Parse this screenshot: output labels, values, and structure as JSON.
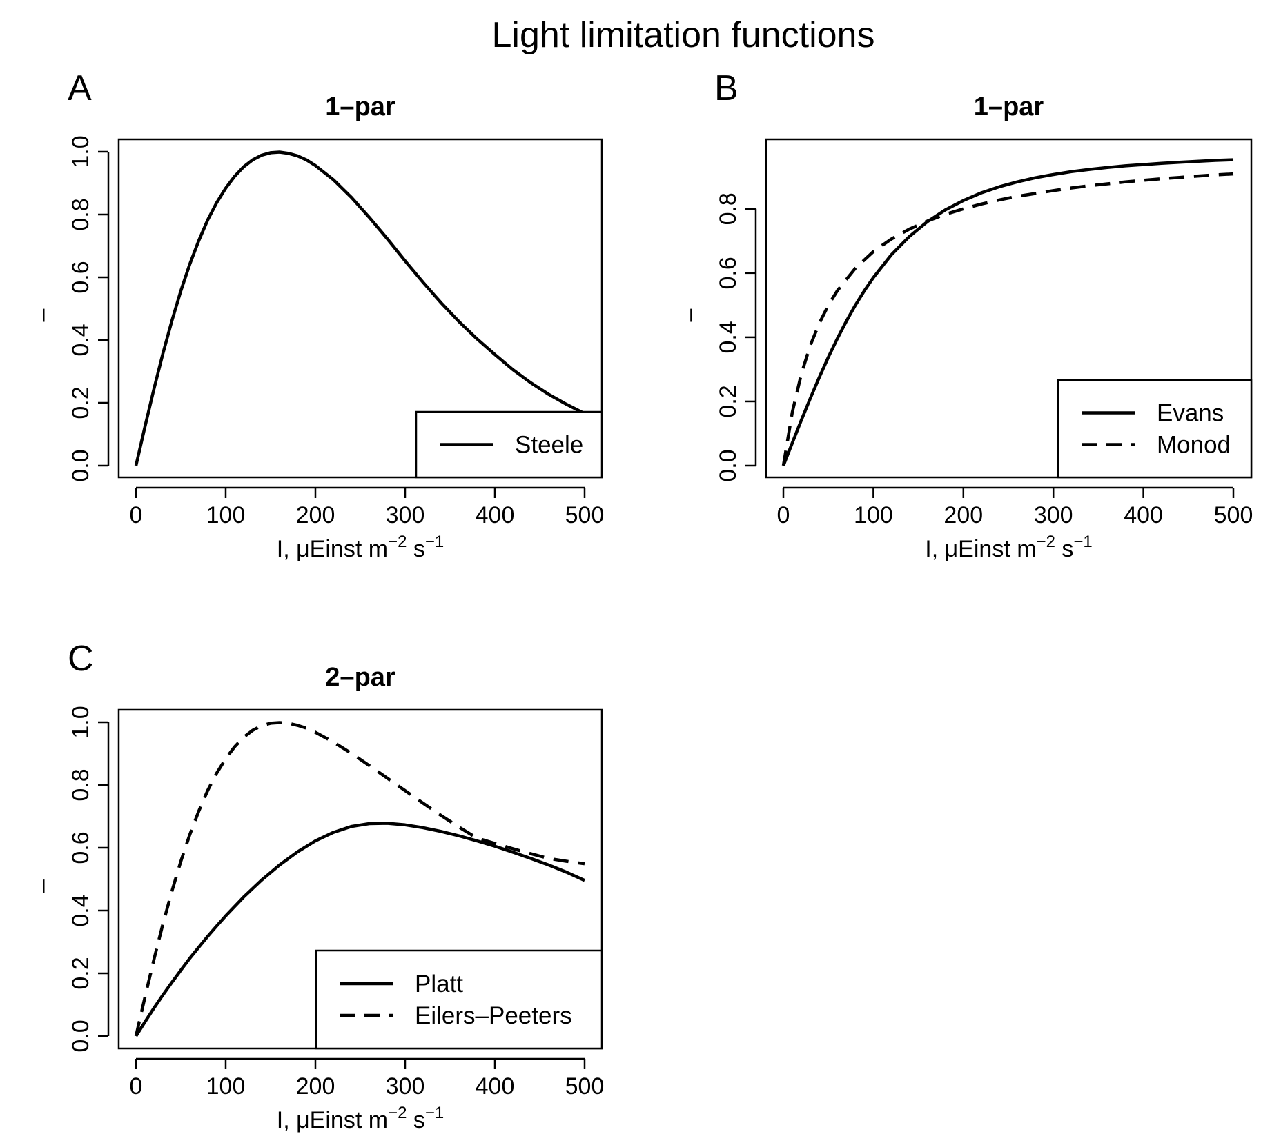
{
  "figure": {
    "title": "Light limitation functions"
  },
  "chart_data": [
    {
      "type": "line",
      "panel": "A",
      "title": "1–par",
      "xlabel": {
        "base": "I, μEinst m",
        "sup1": "−2",
        "mid": " s",
        "sup2": "−1"
      },
      "ylabel": "–",
      "xlim": [
        0,
        500
      ],
      "ylim": [
        0,
        1.0
      ],
      "xticks": [
        0,
        100,
        200,
        300,
        400,
        500
      ],
      "xtick_labels": [
        "0",
        "100",
        "200",
        "300",
        "400",
        "500"
      ],
      "yticks": [
        0,
        0.2,
        0.4,
        0.6,
        0.8,
        1.0
      ],
      "ytick_labels": [
        "0.0",
        "0.2",
        "0.4",
        "0.6",
        "0.8",
        "1.0"
      ],
      "legend_position": "bottom-right",
      "series": [
        {
          "name": "Steele",
          "line_style": "solid",
          "x": [
            0,
            10,
            20,
            30,
            40,
            50,
            60,
            70,
            80,
            90,
            100,
            110,
            120,
            130,
            140,
            150,
            160,
            170,
            180,
            190,
            200,
            220,
            240,
            260,
            280,
            300,
            320,
            340,
            360,
            380,
            400,
            420,
            440,
            460,
            480,
            500
          ],
          "y": [
            0,
            0.124,
            0.244,
            0.357,
            0.461,
            0.557,
            0.642,
            0.717,
            0.783,
            0.838,
            0.884,
            0.922,
            0.952,
            0.974,
            0.989,
            0.997,
            0.999,
            0.995,
            0.987,
            0.974,
            0.956,
            0.911,
            0.855,
            0.791,
            0.723,
            0.652,
            0.584,
            0.519,
            0.459,
            0.404,
            0.354,
            0.306,
            0.264,
            0.227,
            0.195,
            0.166
          ]
        }
      ]
    },
    {
      "type": "line",
      "panel": "B",
      "title": "1–par",
      "xlabel": {
        "base": "I, μEinst m",
        "sup1": "−2",
        "mid": " s",
        "sup2": "−1"
      },
      "ylabel": "–",
      "xlim": [
        0,
        500
      ],
      "ylim": [
        0,
        0.95
      ],
      "xticks": [
        0,
        100,
        200,
        300,
        400,
        500
      ],
      "xtick_labels": [
        "0",
        "100",
        "200",
        "300",
        "400",
        "500"
      ],
      "yticks": [
        0,
        0.2,
        0.4,
        0.6,
        0.8
      ],
      "ytick_labels": [
        "0.0",
        "0.2",
        "0.4",
        "0.6",
        "0.8"
      ],
      "legend_position": "bottom-right",
      "series": [
        {
          "name": "Evans",
          "line_style": "solid",
          "x": [
            0,
            10,
            20,
            30,
            40,
            50,
            60,
            70,
            80,
            90,
            100,
            120,
            140,
            160,
            180,
            200,
            220,
            240,
            260,
            280,
            300,
            320,
            340,
            360,
            380,
            400,
            420,
            440,
            460,
            480,
            500
          ],
          "y": [
            0,
            0.071,
            0.142,
            0.21,
            0.276,
            0.338,
            0.396,
            0.45,
            0.5,
            0.545,
            0.586,
            0.657,
            0.714,
            0.76,
            0.797,
            0.826,
            0.85,
            0.869,
            0.884,
            0.897,
            0.907,
            0.916,
            0.923,
            0.929,
            0.934,
            0.938,
            0.942,
            0.945,
            0.948,
            0.951,
            0.953
          ]
        },
        {
          "name": "Monod",
          "line_style": "dashed",
          "x": [
            0,
            10,
            20,
            30,
            40,
            50,
            60,
            80,
            100,
            120,
            140,
            160,
            180,
            200,
            220,
            240,
            260,
            280,
            300,
            320,
            340,
            360,
            380,
            400,
            420,
            440,
            460,
            480,
            500
          ],
          "y": [
            0,
            0.167,
            0.286,
            0.375,
            0.444,
            0.5,
            0.545,
            0.615,
            0.667,
            0.706,
            0.737,
            0.762,
            0.783,
            0.8,
            0.815,
            0.828,
            0.839,
            0.848,
            0.857,
            0.865,
            0.872,
            0.878,
            0.884,
            0.889,
            0.894,
            0.898,
            0.902,
            0.906,
            0.909
          ]
        }
      ]
    },
    {
      "type": "line",
      "panel": "C",
      "title": "2–par",
      "xlabel": {
        "base": "I, μEinst m",
        "sup1": "−2",
        "mid": " s",
        "sup2": "−1"
      },
      "ylabel": "–",
      "xlim": [
        0,
        500
      ],
      "ylim": [
        0,
        1.0
      ],
      "xticks": [
        0,
        100,
        200,
        300,
        400,
        500
      ],
      "xtick_labels": [
        "0",
        "100",
        "200",
        "300",
        "400",
        "500"
      ],
      "yticks": [
        0,
        0.2,
        0.4,
        0.6,
        0.8,
        1.0
      ],
      "ytick_labels": [
        "0.0",
        "0.2",
        "0.4",
        "0.6",
        "0.8",
        "1.0"
      ],
      "legend_position": "bottom-right",
      "series": [
        {
          "name": "Platt",
          "line_style": "solid",
          "x": [
            0,
            10,
            20,
            30,
            40,
            50,
            60,
            70,
            80,
            90,
            100,
            120,
            140,
            160,
            180,
            200,
            220,
            240,
            260,
            280,
            300,
            320,
            340,
            360,
            380,
            400,
            420,
            440,
            460,
            480,
            500
          ],
          "y": [
            0,
            0.045,
            0.089,
            0.131,
            0.171,
            0.21,
            0.248,
            0.283,
            0.318,
            0.351,
            0.383,
            0.443,
            0.497,
            0.545,
            0.587,
            0.622,
            0.649,
            0.668,
            0.677,
            0.678,
            0.673,
            0.664,
            0.652,
            0.638,
            0.622,
            0.605,
            0.586,
            0.566,
            0.545,
            0.522,
            0.496
          ]
        },
        {
          "name": "Eilers–Peeters",
          "line_style": "dashed",
          "x": [
            0,
            10,
            20,
            30,
            40,
            50,
            60,
            70,
            80,
            90,
            100,
            110,
            120,
            130,
            140,
            150,
            160,
            170,
            180,
            190,
            200,
            220,
            240,
            260,
            280,
            300,
            320,
            340,
            360,
            380,
            400,
            420,
            440,
            460,
            480,
            500
          ],
          "y": [
            0,
            0.124,
            0.244,
            0.357,
            0.461,
            0.557,
            0.642,
            0.717,
            0.783,
            0.838,
            0.884,
            0.922,
            0.952,
            0.974,
            0.989,
            0.997,
            0.999,
            0.997,
            0.99,
            0.981,
            0.968,
            0.937,
            0.901,
            0.862,
            0.822,
            0.782,
            0.742,
            0.703,
            0.666,
            0.631,
            0.614,
            0.597,
            0.581,
            0.566,
            0.557,
            0.549
          ]
        }
      ]
    }
  ]
}
